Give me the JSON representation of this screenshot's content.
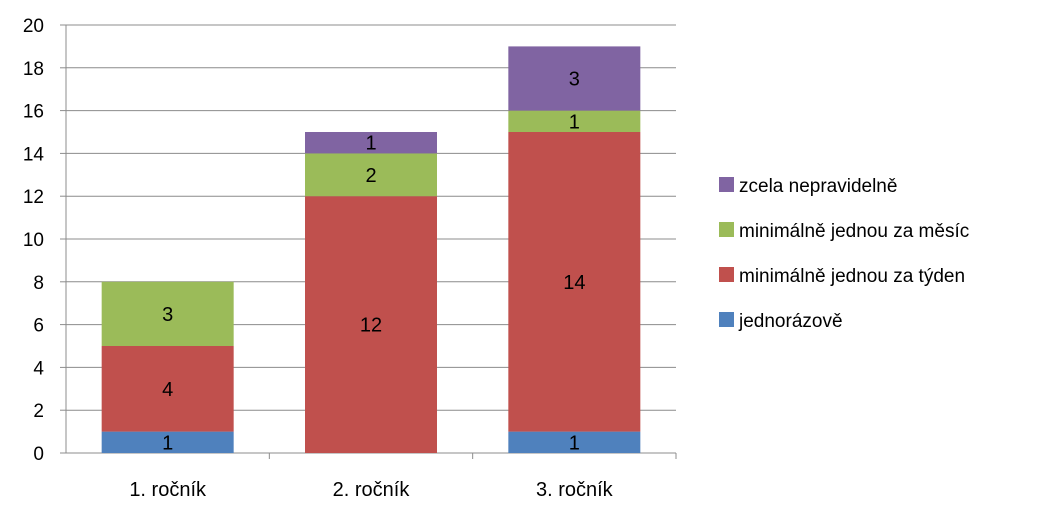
{
  "chart_data": {
    "type": "bar",
    "stacked": true,
    "categories": [
      "1. ročník",
      "2. ročník",
      "3. ročník"
    ],
    "series": [
      {
        "name": "jednorázově",
        "color": "#4f81bd",
        "values": [
          1,
          0,
          1
        ],
        "labels": [
          "1",
          "",
          "1"
        ]
      },
      {
        "name": "minimálně jednou za týden",
        "color": "#c0504d",
        "values": [
          4,
          12,
          14
        ],
        "labels": [
          "4",
          "12",
          "14"
        ]
      },
      {
        "name": "minimálně jednou za měsíc",
        "color": "#9bbb59",
        "values": [
          3,
          2,
          1
        ],
        "labels": [
          "3",
          "2",
          "1"
        ]
      },
      {
        "name": "zcela nepravidelně",
        "color": "#8064a2",
        "values": [
          0,
          1,
          3
        ],
        "labels": [
          "",
          "1",
          "3"
        ]
      }
    ],
    "ylim": [
      0,
      20
    ],
    "yticks": [
      "0",
      "2",
      "4",
      "6",
      "8",
      "10",
      "12",
      "14",
      "16",
      "18",
      "20"
    ],
    "grid": true,
    "legend_position": "right",
    "title": "",
    "xlabel": "",
    "ylabel": ""
  }
}
